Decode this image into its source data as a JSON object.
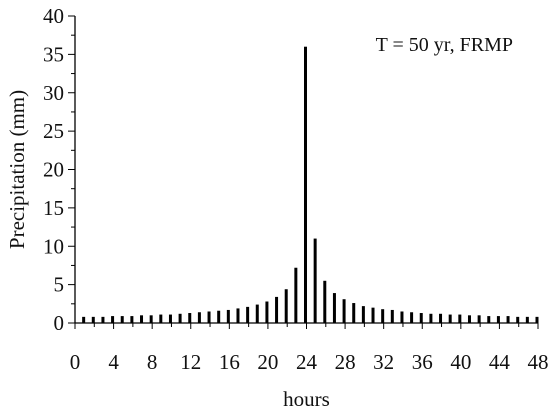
{
  "chart_data": {
    "type": "bar",
    "annotation": "T = 50 yr, FRMP",
    "xlabel": "hours",
    "ylabel": "Precipitation (mm)",
    "xlim": [
      0,
      48
    ],
    "ylim": [
      0,
      40
    ],
    "x_ticks": [
      0,
      4,
      8,
      12,
      16,
      20,
      24,
      28,
      32,
      36,
      40,
      44,
      48
    ],
    "y_ticks": [
      0,
      5,
      10,
      15,
      20,
      25,
      30,
      35,
      40
    ],
    "grid": false,
    "x": [
      1,
      2,
      3,
      4,
      5,
      6,
      7,
      8,
      9,
      10,
      11,
      12,
      13,
      14,
      15,
      16,
      17,
      18,
      19,
      20,
      21,
      22,
      23,
      24,
      25,
      26,
      27,
      28,
      29,
      30,
      31,
      32,
      33,
      34,
      35,
      36,
      37,
      38,
      39,
      40,
      41,
      42,
      43,
      44,
      45,
      46,
      47,
      48
    ],
    "values": [
      0.8,
      0.8,
      0.8,
      0.9,
      0.9,
      0.9,
      1.0,
      1.0,
      1.1,
      1.1,
      1.2,
      1.3,
      1.4,
      1.5,
      1.6,
      1.7,
      1.9,
      2.1,
      2.4,
      2.8,
      3.4,
      4.4,
      7.2,
      36.0,
      11.0,
      5.5,
      3.9,
      3.1,
      2.6,
      2.2,
      2.0,
      1.8,
      1.7,
      1.5,
      1.4,
      1.3,
      1.2,
      1.2,
      1.1,
      1.1,
      1.0,
      1.0,
      0.9,
      0.9,
      0.9,
      0.8,
      0.8,
      0.8
    ]
  }
}
